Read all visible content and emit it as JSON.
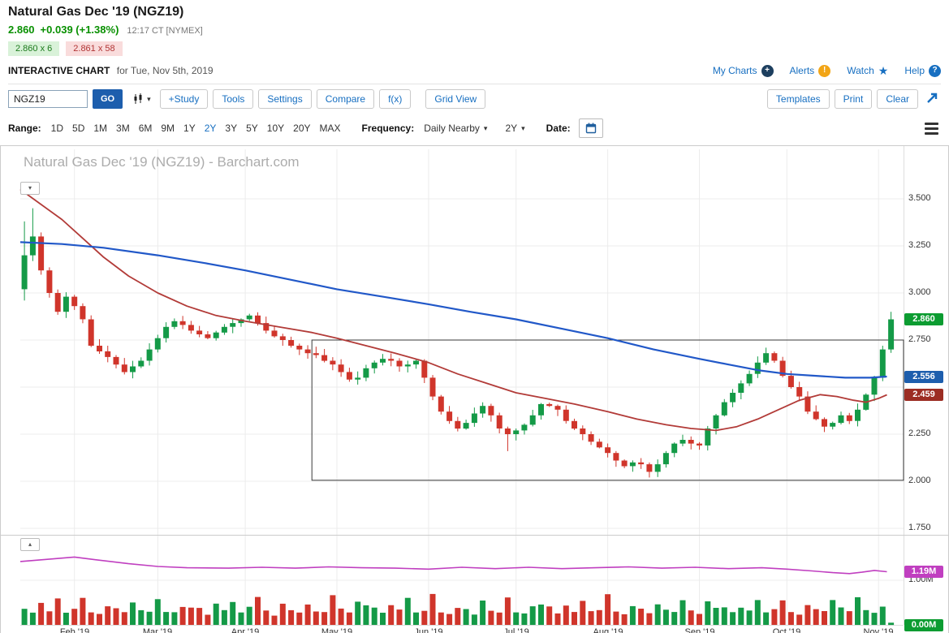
{
  "header": {
    "title": "Natural Gas Dec '19 (NGZ19)",
    "price": "2.860",
    "change": "+0.039 (+1.38%)",
    "timestamp": "12:17 CT [NYMEX]",
    "bid": "2.860 x 6",
    "ask": "2.861 x 58",
    "chart_label": "INTERACTIVE CHART",
    "chart_date": "for Tue, Nov 5th, 2019",
    "links": {
      "my_charts": "My Charts",
      "alerts": "Alerts",
      "watch": "Watch",
      "help": "Help"
    }
  },
  "toolbar": {
    "symbol_value": "NGZ19",
    "go": "GO",
    "buttons": [
      "+Study",
      "Tools",
      "Settings",
      "Compare",
      "f(x)",
      "Grid View"
    ],
    "right_buttons": [
      "Templates",
      "Print",
      "Clear"
    ]
  },
  "rangebar": {
    "range_label": "Range:",
    "ranges": [
      "1D",
      "5D",
      "1M",
      "3M",
      "6M",
      "9M",
      "1Y",
      "2Y",
      "3Y",
      "5Y",
      "10Y",
      "20Y",
      "MAX"
    ],
    "selected_range": "2Y",
    "frequency_label": "Frequency:",
    "frequency_value": "Daily Nearby",
    "period_value": "2Y",
    "date_label": "Date:"
  },
  "chart_data": {
    "type": "candlestick",
    "title": "Natural Gas Dec '19 (NGZ19) - Barchart.com",
    "ylim": [
      1.75,
      3.75
    ],
    "step_days": 2,
    "first_open": 3.02,
    "closes": [
      3.2,
      3.3,
      3.12,
      3.0,
      2.9,
      2.98,
      2.93,
      2.86,
      2.72,
      2.69,
      2.66,
      2.62,
      2.58,
      2.61,
      2.64,
      2.7,
      2.76,
      2.82,
      2.85,
      2.83,
      2.8,
      2.78,
      2.76,
      2.79,
      2.82,
      2.84,
      2.86,
      2.88,
      2.84,
      2.8,
      2.77,
      2.75,
      2.72,
      2.7,
      2.68,
      2.67,
      2.64,
      2.62,
      2.58,
      2.54,
      2.55,
      2.6,
      2.63,
      2.65,
      2.64,
      2.61,
      2.62,
      2.64,
      2.55,
      2.45,
      2.37,
      2.32,
      2.28,
      2.31,
      2.36,
      2.4,
      2.35,
      2.28,
      2.25,
      2.27,
      2.3,
      2.35,
      2.41,
      2.4,
      2.38,
      2.32,
      2.28,
      2.25,
      2.21,
      2.18,
      2.15,
      2.11,
      2.08,
      2.1,
      2.09,
      2.05,
      2.09,
      2.15,
      2.2,
      2.22,
      2.2,
      2.19,
      2.28,
      2.35,
      2.42,
      2.47,
      2.52,
      2.57,
      2.63,
      2.68,
      2.64,
      2.56,
      2.5,
      2.45,
      2.37,
      2.33,
      2.29,
      2.31,
      2.35,
      2.32,
      2.38,
      2.46,
      2.55,
      2.7,
      2.86
    ],
    "wick_overrides": {
      "0": {
        "h": 3.38,
        "l": 2.96
      },
      "1": {
        "h": 3.45
      },
      "58": {
        "l": 2.16
      },
      "75": {
        "l": 2.02
      },
      "104": {
        "h": 2.9
      }
    },
    "ma_blue": {
      "color": "#2158c8",
      "anchors": [
        [
          0,
          3.27
        ],
        [
          10,
          3.26
        ],
        [
          20,
          3.24
        ],
        [
          33,
          3.2
        ],
        [
          44,
          3.16
        ],
        [
          54,
          3.12
        ],
        [
          65,
          3.07
        ],
        [
          76,
          3.02
        ],
        [
          87,
          2.98
        ],
        [
          98,
          2.94
        ],
        [
          108,
          2.9
        ],
        [
          119,
          2.86
        ],
        [
          130,
          2.81
        ],
        [
          141,
          2.76
        ],
        [
          152,
          2.7
        ],
        [
          163,
          2.65
        ],
        [
          170,
          2.62
        ],
        [
          177,
          2.59
        ],
        [
          184,
          2.57
        ],
        [
          191,
          2.56
        ],
        [
          198,
          2.55
        ],
        [
          204,
          2.55
        ],
        [
          208,
          2.556
        ]
      ]
    },
    "ma_red": {
      "color": "#b23b38",
      "anchors": [
        [
          0,
          3.55
        ],
        [
          5,
          3.47
        ],
        [
          10,
          3.39
        ],
        [
          15,
          3.29
        ],
        [
          20,
          3.19
        ],
        [
          26,
          3.09
        ],
        [
          33,
          3.0
        ],
        [
          40,
          2.93
        ],
        [
          47,
          2.88
        ],
        [
          54,
          2.85
        ],
        [
          62,
          2.82
        ],
        [
          70,
          2.79
        ],
        [
          76,
          2.76
        ],
        [
          83,
          2.72
        ],
        [
          90,
          2.68
        ],
        [
          98,
          2.63
        ],
        [
          105,
          2.57
        ],
        [
          112,
          2.52
        ],
        [
          119,
          2.47
        ],
        [
          126,
          2.44
        ],
        [
          133,
          2.41
        ],
        [
          141,
          2.37
        ],
        [
          148,
          2.33
        ],
        [
          155,
          2.3
        ],
        [
          161,
          2.28
        ],
        [
          167,
          2.27
        ],
        [
          172,
          2.29
        ],
        [
          177,
          2.33
        ],
        [
          182,
          2.38
        ],
        [
          187,
          2.43
        ],
        [
          192,
          2.46
        ],
        [
          196,
          2.45
        ],
        [
          200,
          2.43
        ],
        [
          203,
          2.42
        ],
        [
          206,
          2.44
        ],
        [
          208,
          2.459
        ]
      ]
    },
    "annotation_box": {
      "start_day": 70,
      "top": 2.75,
      "bottom": 2.005
    },
    "y_axis": {
      "labels": [
        {
          "text": "3.500",
          "value": 3.5
        },
        {
          "text": "3.250",
          "value": 3.25
        },
        {
          "text": "3.000",
          "value": 3.0
        },
        {
          "text": "2.750",
          "value": 2.75
        },
        {
          "text": "2.250",
          "value": 2.25
        },
        {
          "text": "2.000",
          "value": 2.0
        },
        {
          "text": "1.750",
          "value": 1.75
        }
      ]
    },
    "x_axis": {
      "total_days": 212,
      "months": [
        {
          "label": "Feb '19",
          "day": 13
        },
        {
          "label": "Mar '19",
          "day": 33
        },
        {
          "label": "Apr '19",
          "day": 54
        },
        {
          "label": "May '19",
          "day": 76
        },
        {
          "label": "Jun '19",
          "day": 98
        },
        {
          "label": "Jul '19",
          "day": 119
        },
        {
          "label": "Aug '19",
          "day": 141
        },
        {
          "label": "Sep '19",
          "day": 163
        },
        {
          "label": "Oct '19",
          "day": 184
        },
        {
          "label": "Nov '19",
          "day": 206
        }
      ]
    },
    "badges": [
      {
        "name": "last-price-badge",
        "text": "2.860",
        "value": 2.86,
        "color": "#0c9c31",
        "pane": "price"
      },
      {
        "name": "ma-blue-badge",
        "text": "2.556",
        "value": 2.556,
        "color": "#1d5ead",
        "pane": "price"
      },
      {
        "name": "ma-red-badge",
        "text": "2.459",
        "value": 2.459,
        "color": "#9c2d23",
        "pane": "price"
      },
      {
        "name": "open-interest-badge",
        "text": "1.19M",
        "value": 1.19,
        "color": "#c03fc0",
        "pane": "oi"
      },
      {
        "name": "volume-badge",
        "text": "0.00M",
        "value": 0.0,
        "color": "#0c9c31",
        "pane": "oi"
      }
    ],
    "panel2": {
      "labels": [
        {
          "text": "1.00M",
          "value": 1.0
        },
        {
          "text": "0.00M",
          "value": 0.0
        }
      ],
      "oi_line": {
        "color": "#c03fc0",
        "anchors": [
          [
            0,
            1.42
          ],
          [
            8,
            1.48
          ],
          [
            13,
            1.52
          ],
          [
            18,
            1.46
          ],
          [
            26,
            1.37
          ],
          [
            33,
            1.31
          ],
          [
            40,
            1.28
          ],
          [
            50,
            1.27
          ],
          [
            58,
            1.29
          ],
          [
            66,
            1.27
          ],
          [
            74,
            1.3
          ],
          [
            82,
            1.28
          ],
          [
            90,
            1.27
          ],
          [
            98,
            1.25
          ],
          [
            106,
            1.29
          ],
          [
            114,
            1.26
          ],
          [
            122,
            1.29
          ],
          [
            130,
            1.26
          ],
          [
            138,
            1.28
          ],
          [
            146,
            1.3
          ],
          [
            154,
            1.27
          ],
          [
            162,
            1.29
          ],
          [
            170,
            1.26
          ],
          [
            178,
            1.28
          ],
          [
            184,
            1.25
          ],
          [
            190,
            1.21
          ],
          [
            195,
            1.17
          ],
          [
            199,
            1.15
          ],
          [
            202,
            1.18
          ],
          [
            205,
            1.22
          ],
          [
            208,
            1.19
          ]
        ]
      },
      "volume": {
        "unit": "M",
        "pattern": [
          0.38,
          0.25,
          0.45,
          0.31,
          0.55,
          0.28,
          0.36,
          0.62,
          0.3,
          0.24,
          0.42,
          0.33,
          0.27,
          0.5,
          0.35,
          0.29,
          0.58,
          0.32,
          0.26,
          0.46,
          0.4
        ],
        "overrides": {
          "104": 0.05
        }
      }
    },
    "colors": {
      "up": "#149a47",
      "down": "#d0352b",
      "grid": "#ececec",
      "box": "#3a3a3a"
    }
  }
}
